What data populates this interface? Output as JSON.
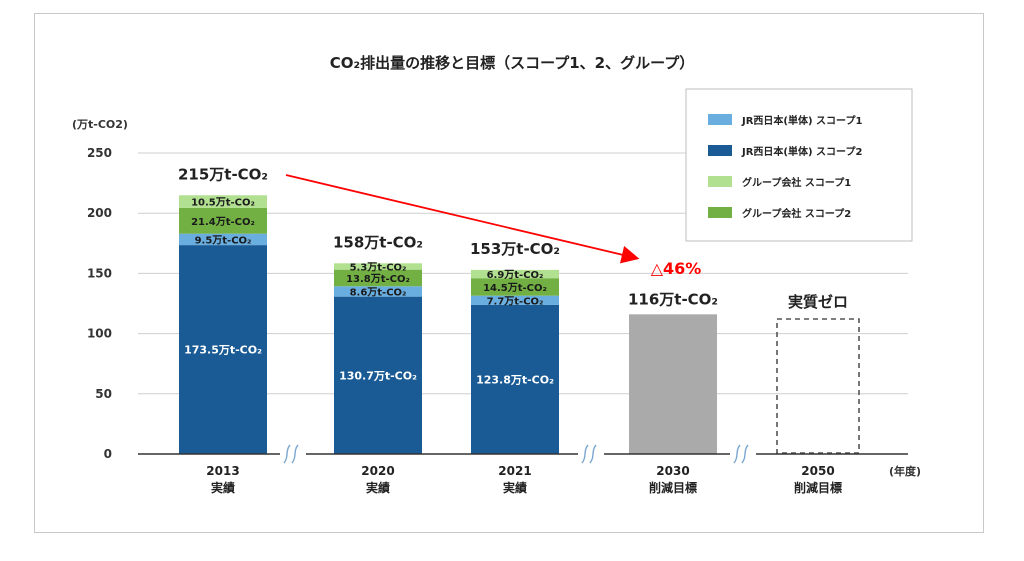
{
  "chart_data": {
    "type": "bar",
    "stacked": true,
    "title": "CO₂排出量の推移と目標（スコープ1、2、グループ）",
    "ylabel": "(万t-CO2)",
    "xlabel": "(年度)",
    "ylim": [
      0,
      250
    ],
    "yticks": [
      0,
      50,
      100,
      150,
      200,
      250
    ],
    "grid": true,
    "legend_position": "top-right",
    "categories": [
      {
        "year": "2013",
        "sub": "実績"
      },
      {
        "year": "2020",
        "sub": "実績"
      },
      {
        "year": "2021",
        "sub": "実績"
      },
      {
        "year": "2030",
        "sub": "削減目標"
      },
      {
        "year": "2050",
        "sub": "削減目標"
      }
    ],
    "series": [
      {
        "name": "JR西日本(単体) スコープ2",
        "color": "#1a5b95",
        "values": [
          173.5,
          130.7,
          123.8,
          null,
          null
        ],
        "labels": [
          "173.5万t-CO₂",
          "130.7万t-CO₂",
          "123.8万t-CO₂",
          "",
          ""
        ]
      },
      {
        "name": "JR西日本(単体) スコープ1",
        "color": "#6aaee0",
        "values": [
          9.5,
          8.6,
          7.7,
          null,
          null
        ],
        "labels": [
          "9.5万t-CO₂",
          "8.6万t-CO₂",
          "7.7万t-CO₂",
          "",
          ""
        ]
      },
      {
        "name": "グループ会社 スコープ2",
        "color": "#72b043",
        "values": [
          21.4,
          13.8,
          14.5,
          null,
          null
        ],
        "labels": [
          "21.4万t-CO₂",
          "13.8万t-CO₂",
          "14.5万t-CO₂",
          "",
          ""
        ]
      },
      {
        "name": "グループ会社 スコープ1",
        "color": "#b2e091",
        "values": [
          10.5,
          5.3,
          6.9,
          null,
          null
        ],
        "labels": [
          "10.5万t-CO₂",
          "5.3万t-CO₂",
          "6.9万t-CO₂",
          "",
          ""
        ]
      }
    ],
    "legend_order": [
      {
        "name": "JR西日本(単体) スコープ1",
        "color": "#6aaee0"
      },
      {
        "name": "JR西日本(単体) スコープ2",
        "color": "#1a5b95"
      },
      {
        "name": "グループ会社 スコープ1",
        "color": "#b2e091"
      },
      {
        "name": "グループ会社 スコープ2",
        "color": "#72b043"
      }
    ],
    "totals": [
      "215万t-CO₂",
      "158万t-CO₂",
      "153万t-CO₂",
      "116万t-CO₂",
      "実質ゼロ"
    ],
    "target_2030": {
      "value": 116,
      "color": "#aaaaaa"
    },
    "target_2050": {
      "value": 0,
      "style": "dashed-outline"
    },
    "annotation": {
      "text": "△46%",
      "color": "#ff0000"
    }
  }
}
